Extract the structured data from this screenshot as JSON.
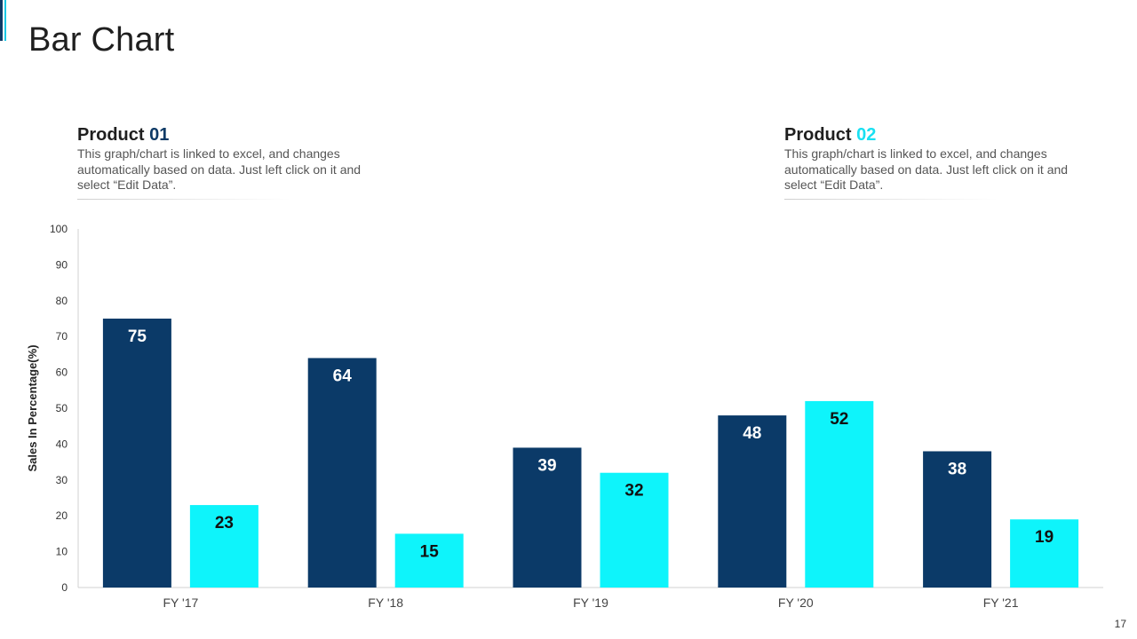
{
  "page": {
    "title": "Bar Chart",
    "page_number": "17"
  },
  "legend": {
    "product1": {
      "name": "Product",
      "number": "01",
      "description": "This graph/chart is linked to excel, and changes automatically based on data. Just left click on it and select “Edit Data”."
    },
    "product2": {
      "name": "Product",
      "number": "02",
      "description": "This graph/chart is linked to excel, and changes automatically based on data. Just left click on it and select “Edit Data”."
    }
  },
  "colors": {
    "product1": "#0b3a68",
    "product2": "#0ef4fb",
    "axis": "#d0d0d0",
    "tick_text": "#333333"
  },
  "chart_data": {
    "type": "bar",
    "title": "",
    "xlabel": "",
    "ylabel": "Sales In Percentage(%)",
    "categories": [
      "FY '17",
      "FY '18",
      "FY '19",
      "FY '20",
      "FY '21"
    ],
    "series": [
      {
        "name": "Product 01",
        "values": [
          75,
          64,
          39,
          48,
          38
        ]
      },
      {
        "name": "Product 02",
        "values": [
          23,
          15,
          32,
          52,
          19
        ]
      }
    ],
    "ylim": [
      0,
      100
    ],
    "yticks": [
      0,
      10,
      20,
      30,
      40,
      50,
      60,
      70,
      80,
      90,
      100
    ],
    "grid": false,
    "data_labels": true
  }
}
